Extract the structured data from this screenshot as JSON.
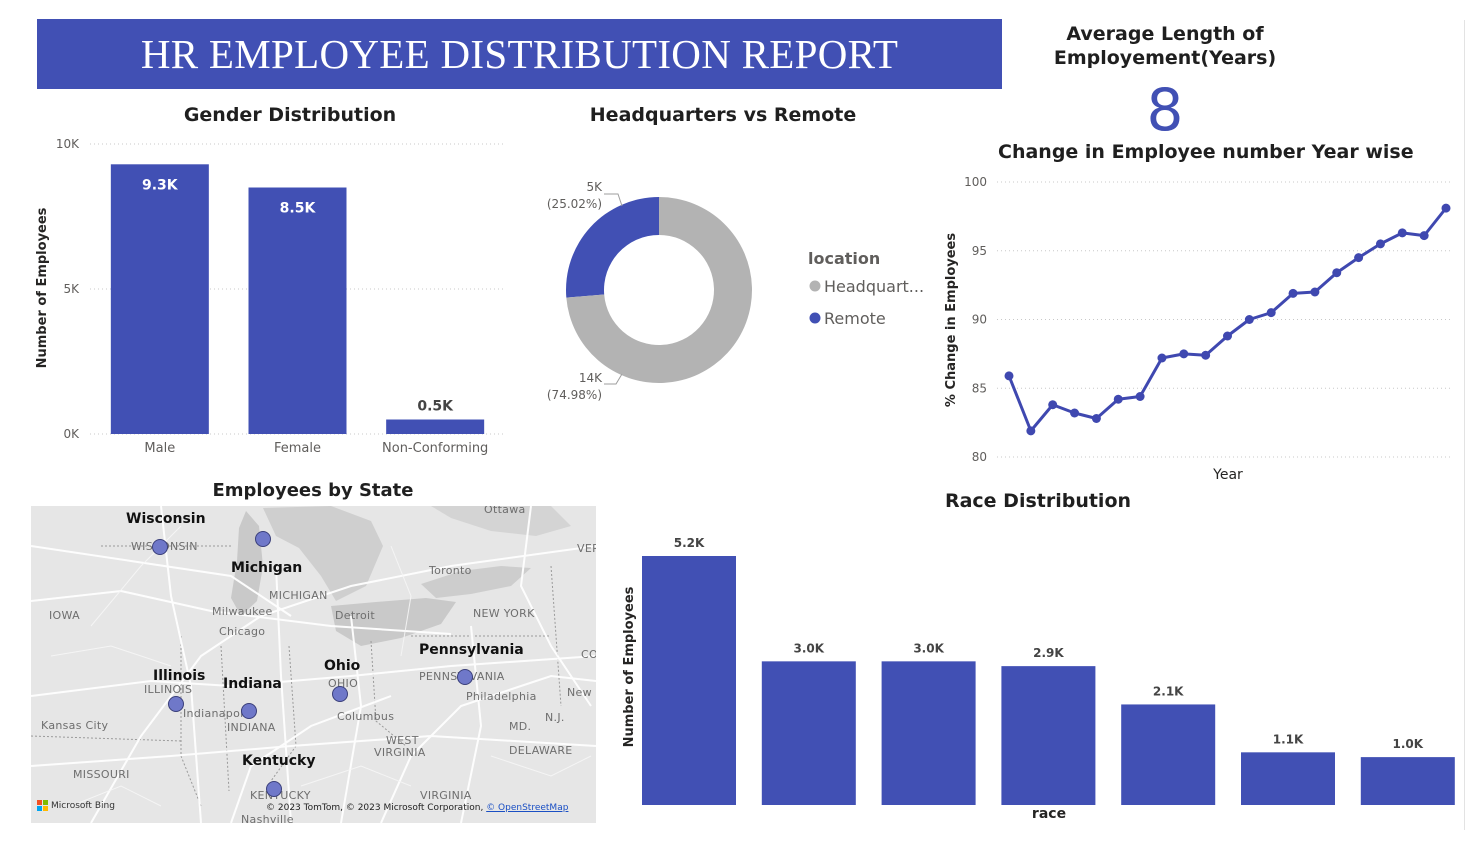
{
  "report_title": "HR EMPLOYEE DISTRIBUTION REPORT",
  "colors": {
    "accent": "#4150b4",
    "grey": "#b3b3b3",
    "line": "#3f48b0"
  },
  "kpi": {
    "title_line1": "Average Length of",
    "title_line2": "Employement(Years)",
    "value": "8"
  },
  "chart_data": [
    {
      "id": "gender",
      "type": "bar",
      "title": "Gender Distribution",
      "xlabel": "",
      "ylabel": "Number of Employees",
      "categories": [
        "Male",
        "Female",
        "Non-Conforming"
      ],
      "values": [
        9300,
        8500,
        500
      ],
      "data_labels": [
        "9.3K",
        "8.5K",
        "0.5K"
      ],
      "ylim": [
        0,
        10000
      ],
      "yticks": [
        "0K",
        "5K",
        "10K"
      ],
      "grid": true
    },
    {
      "id": "location",
      "type": "pie",
      "title": "Headquarters vs Remote",
      "legend_title": "location",
      "legend_position": "right",
      "slices": [
        {
          "label": "Headquart...",
          "value": 14000,
          "value_label": "14K",
          "pct_label": "(74.98%)",
          "color": "#b3b3b3"
        },
        {
          "label": "Remote",
          "value": 5000,
          "value_label": "5K",
          "pct_label": "(25.02%)",
          "color": "#4150b4"
        }
      ]
    },
    {
      "id": "change",
      "type": "line",
      "title": "Change in Employee number Year wise",
      "xlabel": "Year",
      "ylabel": "% Change in Employees",
      "ylim": [
        80,
        100
      ],
      "yticks": [
        "80",
        "85",
        "90",
        "95",
        "100"
      ],
      "grid": true,
      "values": [
        85.9,
        81.9,
        83.8,
        83.2,
        82.8,
        84.2,
        84.4,
        87.2,
        87.5,
        87.4,
        88.8,
        90.0,
        90.5,
        91.9,
        92.0,
        93.4,
        94.5,
        95.5,
        96.3,
        96.1,
        98.1
      ]
    },
    {
      "id": "race",
      "type": "bar",
      "title": "Race Distribution",
      "xlabel": "race",
      "ylabel": "Number of Employees",
      "values": [
        5200,
        3000,
        3000,
        2900,
        2100,
        1100,
        1000
      ],
      "data_labels": [
        "5.2K",
        "3.0K",
        "3.0K",
        "2.9K",
        "2.1K",
        "1.1K",
        "1.0K"
      ]
    }
  ],
  "map": {
    "title": "Employees by State",
    "states": [
      "Wisconsin",
      "Michigan",
      "Illinois",
      "Indiana",
      "Ohio",
      "Pennsylvania",
      "Kentucky"
    ],
    "places": [
      "WISCONSIN",
      "MICHIGAN",
      "Milwaukee",
      "Chicago",
      "Detroit",
      "Toronto",
      "Ottawa",
      "NEW YORK",
      "IOWA",
      "ILLINOIS",
      "Indianapolis",
      "INDIANA",
      "OHIO",
      "Columbus",
      "PENNSYLVANIA",
      "Philadelphia",
      "New",
      "N.J.",
      "MD.",
      "DELAWARE",
      "WEST",
      "VIRGINIA",
      "Kansas City",
      "MISSOURI",
      "KENTUCKY",
      "VIRGINIA",
      "Nashville",
      "VER",
      "CO"
    ],
    "brand": "Microsoft Bing",
    "credit": "© 2023 TomTom, © 2023 Microsoft Corporation,",
    "credit_link": "© OpenStreetMap"
  }
}
